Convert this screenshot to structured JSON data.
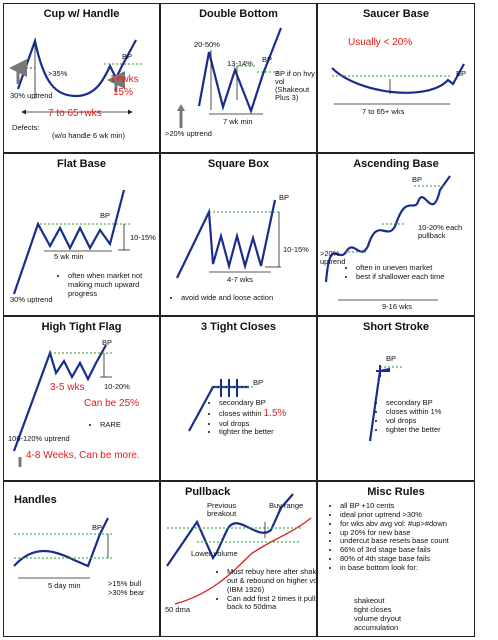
{
  "cup": {
    "title": "Cup w/ Handle",
    "bp": "BP",
    "pct35": ">35%",
    "uptrend": "30% uptrend",
    "wks1": "1+wks",
    "pct15": "15%",
    "duration": "7 to 65+wks",
    "defects": "Defects:",
    "handle_min": "(w/o handle 6 wk min)"
  },
  "double_bottom": {
    "title": "Double Bottom",
    "pct_2050": "20-50%",
    "pct_1314": "13-14%",
    "bp": "BP",
    "bp_note": "BP if on hvy vol (Shakeout Plus 3)",
    "uptrend": ">20% uptrend",
    "duration": "7 wk min"
  },
  "saucer": {
    "title": "Saucer Base",
    "usually": "Usually < 20%",
    "bp": "BP",
    "duration": "7 to 65+ wks"
  },
  "flat": {
    "title": "Flat Base",
    "bp": "BP",
    "pct": "10-15%",
    "duration": "5 wk min",
    "uptrend": "30% uptrend",
    "note": "often when market not making much upward progress"
  },
  "square": {
    "title": "Square Box",
    "bp": "BP",
    "pct": "10-15%",
    "duration": "4-7 wks",
    "note": "avoid wide and loose action"
  },
  "ascending": {
    "title": "Ascending Base",
    "bp": "BP",
    "pullback": "10-20% each pullback",
    "uptrend": ">20% uptrend",
    "duration": "9-16 wks",
    "notes": [
      "often in uneven market",
      "best if shallower each time"
    ]
  },
  "htf": {
    "title": "High Tight Flag",
    "bp": "BP",
    "wks": "3-5 wks",
    "pct": "10-20%",
    "can_be": "Can be 25%",
    "uptrend": "100-120% uptrend",
    "rare": "RARE",
    "weeks_note": "4-8 Weeks, Can be more."
  },
  "ttc": {
    "title": "3 Tight Closes",
    "bp": "BP",
    "notes": [
      "secondary BP",
      "closes within ",
      "vol drops",
      "tighter the better"
    ],
    "within_value": "1.5%"
  },
  "short_stroke": {
    "title": "Short Stroke",
    "bp": "BP",
    "notes": [
      "secondary BP",
      "closes within 1%",
      "vol drops",
      "tighter the better"
    ]
  },
  "handles": {
    "title": "Handles",
    "bp": "BP",
    "duration": "5 day min",
    "bull": ">15% bull",
    "bear": ">30% bear"
  },
  "pullback": {
    "title": "Pullback",
    "prev_breakout": "Previous breakout",
    "buy_range": "Buy range",
    "lower_volume": "Lower volume",
    "dma": "50 dma",
    "notes": [
      "Must rebuy here after shake out & rebound on higher vol (IBM 1926)",
      "Can add first 2 times it pulls back to 50dma"
    ]
  },
  "misc": {
    "title": "Misc Rules",
    "rules": [
      "all BP +10 cents",
      "ideal prior uptrend >30%",
      "for wks abv avg vol: #up>#down",
      "up 20% for new base",
      "undercut base resets base count",
      "66% of 3rd stage base fails",
      "80% of 4th stage base fails",
      "in base bottom look for:"
    ],
    "lookfor": [
      "shakeout",
      "tight closes",
      "volume dryout",
      "accumulation"
    ]
  }
}
